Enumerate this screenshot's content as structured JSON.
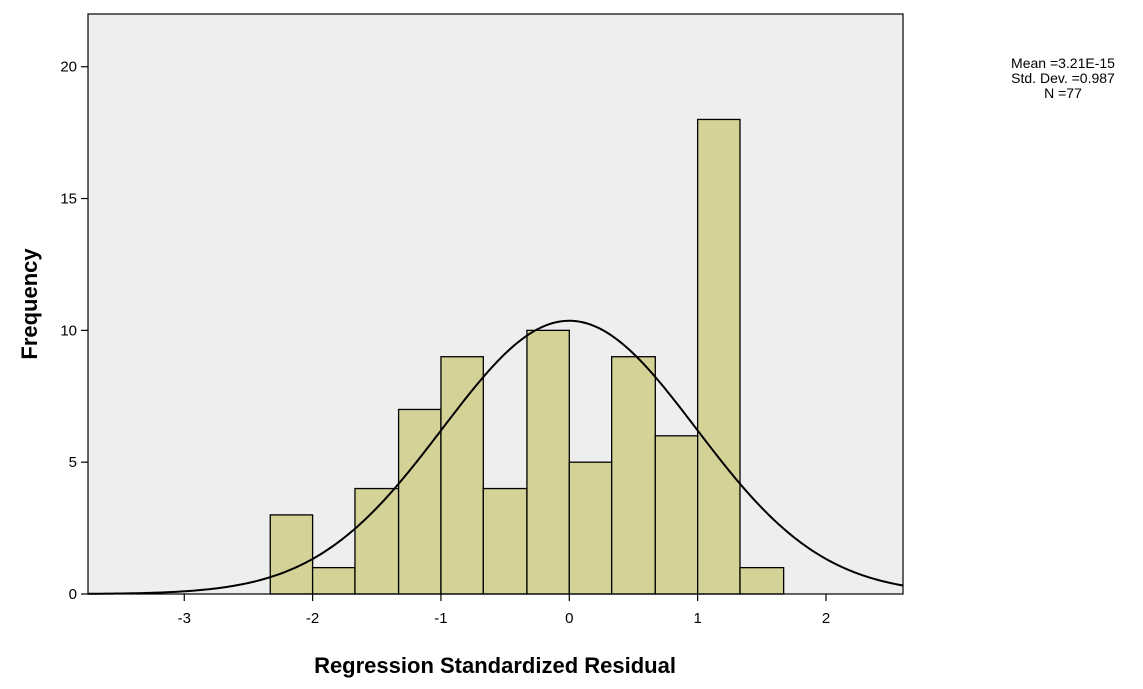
{
  "chart_data": {
    "type": "bar",
    "subtype": "histogram",
    "xlabel": "Regression Standardized Residual",
    "ylabel": "Frequency",
    "xlim": [
      -3.75,
      2.6
    ],
    "ylim": [
      0,
      22
    ],
    "xticks": [
      -3,
      -2,
      -1,
      0,
      1,
      2
    ],
    "xtick_labels": [
      "-3",
      "-2",
      "-1",
      "0",
      "1",
      "2"
    ],
    "yticks": [
      0,
      5,
      10,
      15,
      20
    ],
    "ytick_labels": [
      "0",
      "5",
      "10",
      "15",
      "20"
    ],
    "bin_width": 0.333,
    "bins": [
      {
        "start": -2.33,
        "end": -2.0,
        "count": 3
      },
      {
        "start": -2.0,
        "end": -1.67,
        "count": 1
      },
      {
        "start": -1.67,
        "end": -1.33,
        "count": 4
      },
      {
        "start": -1.33,
        "end": -1.0,
        "count": 7
      },
      {
        "start": -1.0,
        "end": -0.67,
        "count": 9
      },
      {
        "start": -0.67,
        "end": -0.33,
        "count": 4
      },
      {
        "start": -0.33,
        "end": 0.0,
        "count": 10
      },
      {
        "start": 0.0,
        "end": 0.33,
        "count": 5
      },
      {
        "start": 0.33,
        "end": 0.67,
        "count": 9
      },
      {
        "start": 0.67,
        "end": 1.0,
        "count": 6
      },
      {
        "start": 1.0,
        "end": 1.33,
        "count": 18
      },
      {
        "start": 1.33,
        "end": 1.67,
        "count": 1
      }
    ],
    "normal_curve": {
      "mean": 0,
      "std_dev": 0.987,
      "n": 77
    },
    "bar_color": "#d4d296",
    "plot_background": "#eeeeee",
    "grid": false,
    "legend": "none"
  },
  "stats": {
    "mean_label": "Mean =3.21E-15",
    "std_label": "Std. Dev. =0.987",
    "n_label": "N =77"
  }
}
